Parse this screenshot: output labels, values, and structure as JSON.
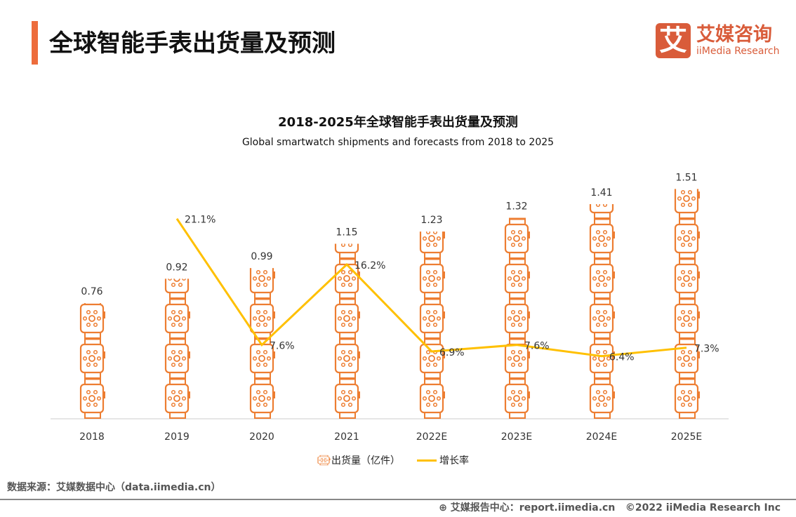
{
  "header": {
    "title": "全球智能手表出货量及预测",
    "logo_mark": "艾",
    "logo_cn": "艾媒咨询",
    "logo_en": "iiMedia Research"
  },
  "chart_data": {
    "type": "bar+line",
    "title": "2018-2025年全球智能手表出货量及预测",
    "subtitle": "Global smartwatch shipments and forecasts from 2018 to 2025",
    "categories": [
      "2018",
      "2019",
      "2020",
      "2021",
      "2022E",
      "2023E",
      "2024E",
      "2025E"
    ],
    "series": [
      {
        "name": "出货量（亿件）",
        "type": "pictorial-bar",
        "values": [
          0.76,
          0.92,
          0.99,
          1.15,
          1.23,
          1.32,
          1.41,
          1.51
        ],
        "labels": [
          "0.76",
          "0.92",
          "0.99",
          "1.15",
          "1.23",
          "1.32",
          "1.41",
          "1.51"
        ],
        "color": "#ED7D31",
        "icon": "smartwatch-icon"
      },
      {
        "name": "增长率",
        "type": "line",
        "values": [
          null,
          21.1,
          7.6,
          16.2,
          6.9,
          7.6,
          6.4,
          7.3
        ],
        "labels": [
          "",
          "21.1%",
          "7.6%",
          "16.2%",
          "6.9%",
          "7.6%",
          "6.4%",
          "7.3%"
        ],
        "color": "#FFC000"
      }
    ],
    "legend": "bottom-center"
  },
  "footer": {
    "source": "数据来源：艾媒数据中心（data.iimedia.cn）",
    "report": "艾媒报告中心：report.iimedia.cn",
    "copyright": "©2022 iiMedia Research Inc"
  }
}
